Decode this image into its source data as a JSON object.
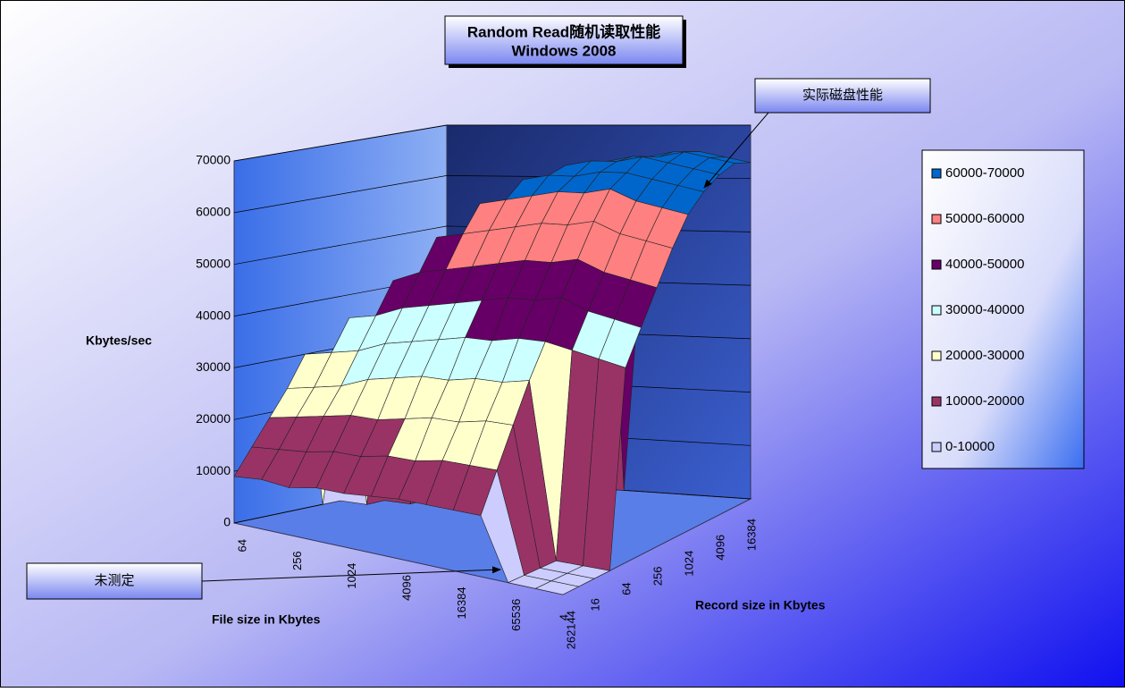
{
  "chart_data": {
    "type": "surface",
    "title": "Random Read随机读取性能",
    "subtitle": "Windows 2008",
    "z_label": "Kbytes/sec",
    "x_label": "File size in Kbytes",
    "y_label": "Record size in Kbytes",
    "x_categories": [
      "64",
      null,
      "256",
      null,
      "1024",
      null,
      "4096",
      null,
      "16384",
      null,
      "65536",
      null,
      "262144"
    ],
    "y_categories": [
      "4",
      null,
      "16",
      null,
      "64",
      null,
      "256",
      null,
      "1024",
      null,
      "4096",
      null,
      "16384"
    ],
    "values": [
      [
        9000,
        14000,
        19000,
        24000,
        30000,
        0,
        0,
        0,
        0,
        0,
        0,
        0,
        0
      ],
      [
        9500,
        14500,
        20000,
        25000,
        31000,
        37000,
        0,
        0,
        0,
        0,
        0,
        0,
        0
      ],
      [
        9000,
        15000,
        21000,
        26000,
        32000,
        38000,
        44000,
        0,
        0,
        0,
        0,
        0,
        0
      ],
      [
        10000,
        16000,
        22000,
        28000,
        34000,
        40000,
        46000,
        52000,
        0,
        0,
        0,
        0,
        0
      ],
      [
        10000,
        16000,
        22000,
        29000,
        35000,
        41000,
        47000,
        53000,
        58000,
        0,
        0,
        0,
        0
      ],
      [
        10500,
        17000,
        23000,
        30000,
        36000,
        42000,
        48000,
        54000,
        59000,
        62000,
        0,
        0,
        0
      ],
      [
        11000,
        17000,
        24000,
        30000,
        37000,
        43000,
        49000,
        55000,
        60000,
        63000,
        64000,
        0,
        0
      ],
      [
        11000,
        18000,
        24000,
        31000,
        37000,
        44000,
        50000,
        56000,
        61000,
        63000,
        65000,
        64000,
        0
      ],
      [
        11000,
        18000,
        25000,
        31000,
        38000,
        44000,
        50000,
        56000,
        61000,
        64000,
        65000,
        65000,
        64000
      ],
      [
        11000,
        18000,
        25000,
        32000,
        38000,
        45000,
        51000,
        57000,
        62000,
        64000,
        66000,
        65000,
        65000
      ],
      [
        0,
        0,
        0,
        0,
        37000,
        43000,
        49000,
        55000,
        60000,
        63000,
        65000,
        66000,
        65000
      ],
      [
        0,
        0,
        0,
        0,
        36000,
        42000,
        48000,
        54000,
        59000,
        62000,
        64000,
        65000,
        64000
      ],
      [
        0,
        0,
        0,
        0,
        35000,
        41000,
        47000,
        53000,
        58000,
        61000,
        63000,
        64000,
        63000
      ]
    ],
    "zlim": [
      0,
      70000
    ],
    "zticks": [
      0,
      10000,
      20000,
      30000,
      40000,
      50000,
      60000,
      70000
    ],
    "grid": true,
    "legend_position": "right",
    "bands": [
      {
        "name": "60000-70000",
        "color": "#0066cc"
      },
      {
        "name": "50000-60000",
        "color": "#ff8080"
      },
      {
        "name": "40000-50000",
        "color": "#660066"
      },
      {
        "name": "30000-40000",
        "color": "#ccffff"
      },
      {
        "name": "20000-30000",
        "color": "#ffffcc"
      },
      {
        "name": "10000-20000",
        "color": "#993366"
      },
      {
        "name": "0-10000",
        "color": "#ccccff"
      }
    ],
    "annotations": [
      {
        "text": "实际磁盘性能"
      },
      {
        "text": "未测定"
      }
    ]
  }
}
